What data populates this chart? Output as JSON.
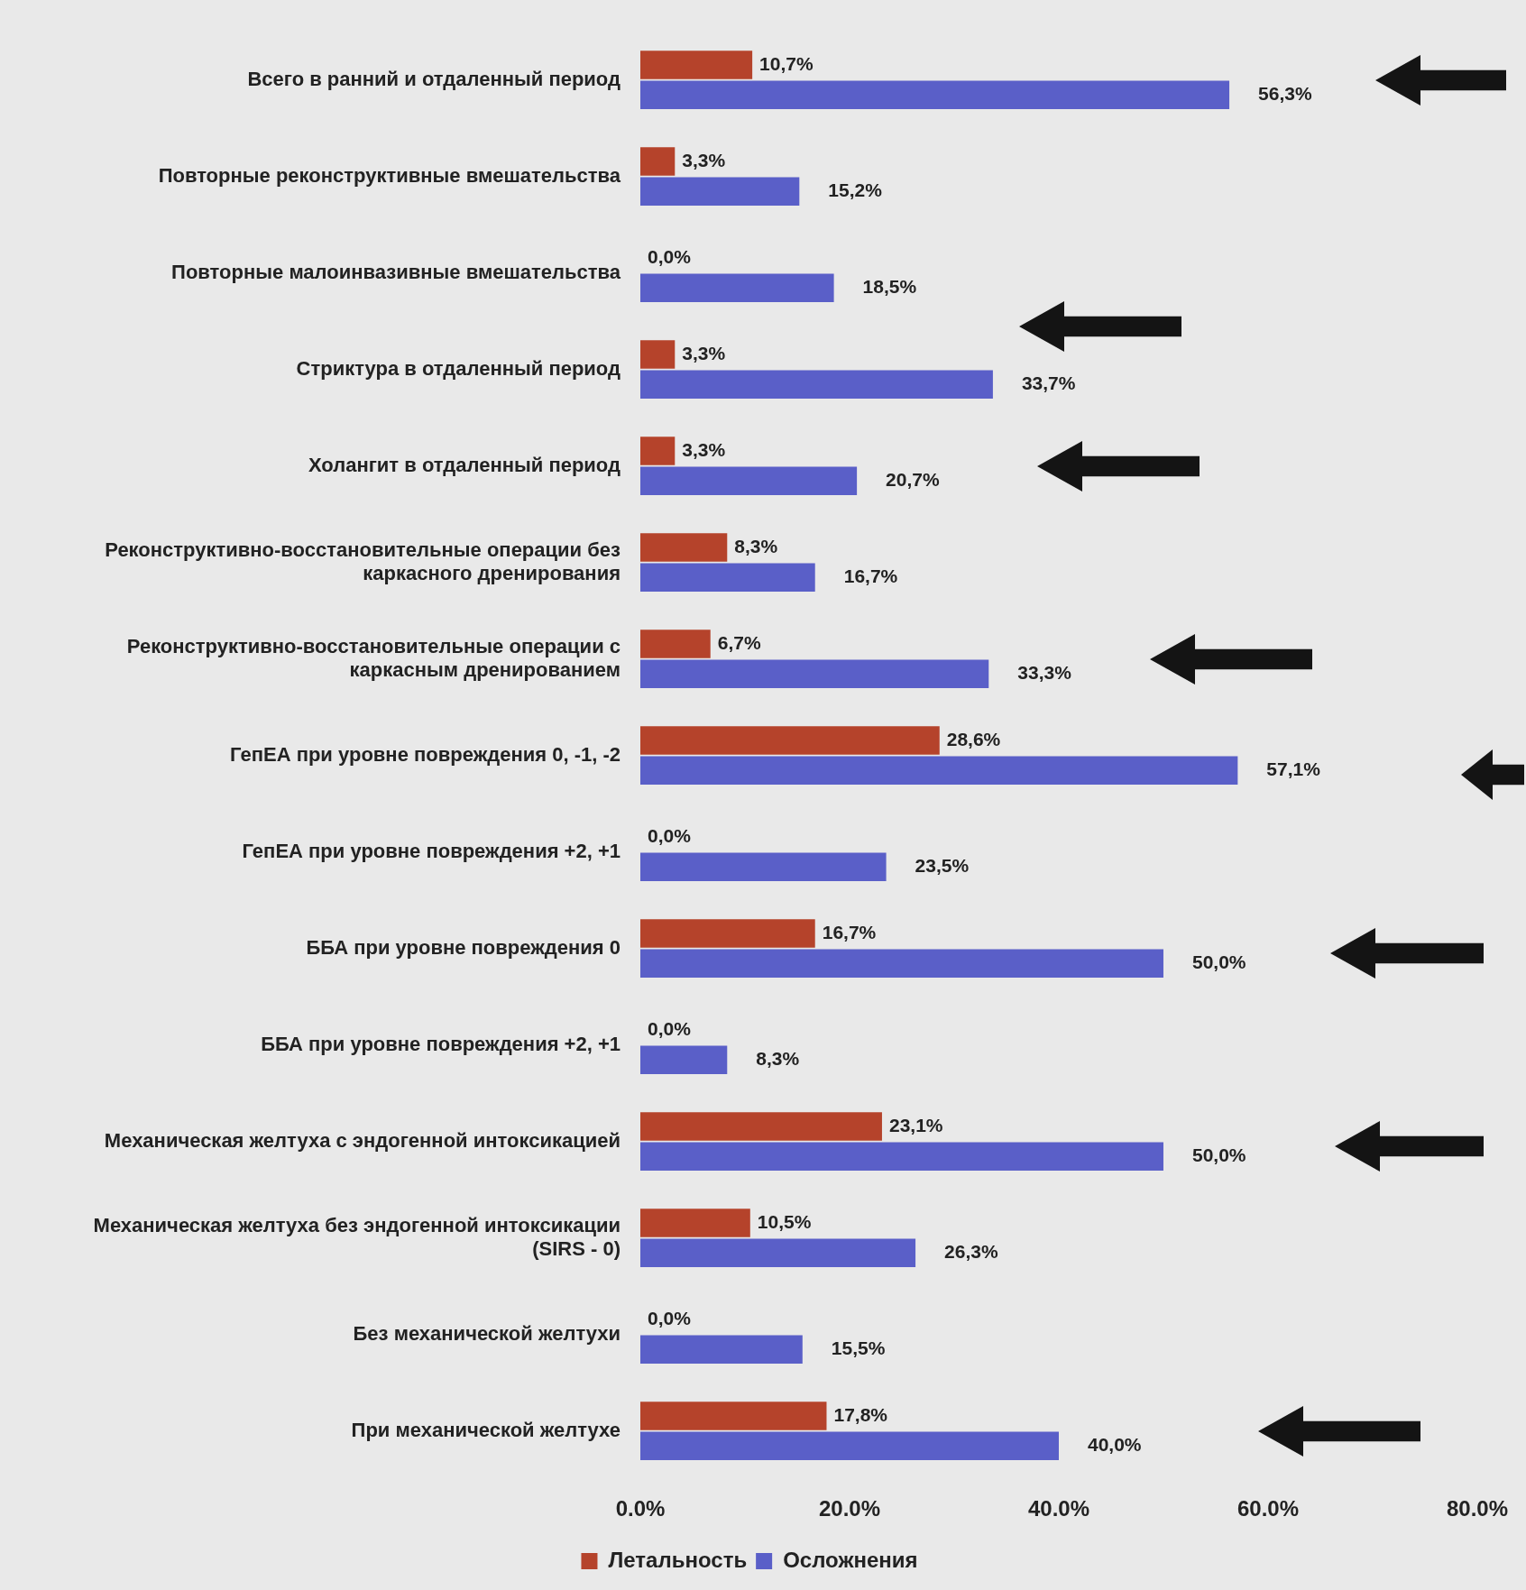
{
  "chart_data": {
    "type": "bar",
    "orientation": "horizontal",
    "categories": [
      "Всего в ранний и отдаленный период",
      "Повторные реконструктивные вмешательства",
      "Повторные малоинвазивные вмешательства",
      "Стриктура в отдаленный период",
      "Холангит в отдаленный период",
      "Реконструктивно-восстановительные операции без каркасного дренирования",
      "Реконструктивно-восстановительные операции с каркасным дренированием",
      "ГепЕА при уровне повреждения 0, -1, -2",
      "ГепЕА при уровне повреждения +2, +1",
      "ББА при уровне повреждения 0",
      "ББА при уровне повреждения +2, +1",
      "Механическая желтуха с эндогенной интоксикацией",
      "Механическая желтуха без эндогенной интоксикации (SIRS - 0)",
      "Без механической желтухи",
      "При механической желтухе"
    ],
    "series": [
      {
        "name": "Летальность",
        "color": "#b5432b",
        "values": [
          10.7,
          3.3,
          0.0,
          3.3,
          3.3,
          8.3,
          6.7,
          28.6,
          0.0,
          16.7,
          0.0,
          23.1,
          10.5,
          0.0,
          17.8
        ],
        "value_labels": [
          "10,7%",
          "3,3%",
          "0,0%",
          "3,3%",
          "3,3%",
          "8,3%",
          "6,7%",
          "28,6%",
          "0,0%",
          "16,7%",
          "0,0%",
          "23,1%",
          "10,5%",
          "0,0%",
          "17,8%"
        ]
      },
      {
        "name": "Осложнения",
        "color": "#5a5fc8",
        "values": [
          56.3,
          15.2,
          18.5,
          33.7,
          20.7,
          16.7,
          33.3,
          57.1,
          23.5,
          50.0,
          8.3,
          50.0,
          26.3,
          15.5,
          40.0
        ],
        "value_labels": [
          "56,3%",
          "15,2%",
          "18,5%",
          "33,7%",
          "20,7%",
          "16,7%",
          "33,3%",
          "57,1%",
          "23,5%",
          "50,0%",
          "8,3%",
          "50,0%",
          "26,3%",
          "15,5%",
          "40,0%"
        ]
      }
    ],
    "xlim": [
      0,
      80
    ],
    "xticks": [
      {
        "value": 0,
        "label": "0.0%"
      },
      {
        "value": 20,
        "label": "20.0%"
      },
      {
        "value": 40,
        "label": "40.0%"
      },
      {
        "value": 60,
        "label": "60.0%"
      },
      {
        "value": 80,
        "label": "80.0%"
      }
    ],
    "grid": false,
    "legend": "bottom"
  }
}
